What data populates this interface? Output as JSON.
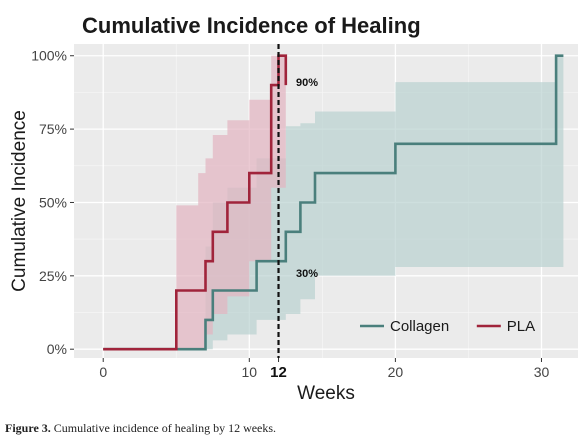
{
  "chart_data": {
    "type": "line",
    "step": true,
    "title": "Cumulative Incidence of Healing",
    "xlabel": "Weeks",
    "ylabel": "Cumulative Incidence",
    "xlim": [
      -2,
      32.5
    ],
    "ylim": [
      -0.03,
      1.04
    ],
    "x_ticks": [
      {
        "value": 0,
        "label": "0",
        "bold": false
      },
      {
        "value": 10,
        "label": "10",
        "bold": false
      },
      {
        "value": 12,
        "label": "12",
        "bold": true
      },
      {
        "value": 20,
        "label": "20",
        "bold": false
      },
      {
        "value": 30,
        "label": "30",
        "bold": false
      }
    ],
    "y_ticks": [
      {
        "value": 0,
        "label": "0%"
      },
      {
        "value": 0.25,
        "label": "25%"
      },
      {
        "value": 0.5,
        "label": "50%"
      },
      {
        "value": 0.75,
        "label": "75%"
      },
      {
        "value": 1.0,
        "label": "100%"
      }
    ],
    "grid": true,
    "background": "#ebebeb",
    "legend_position": "bottom-right",
    "series": [
      {
        "name": "Collagen",
        "color": "#4a7f7c",
        "band_color": "#b9d2d0",
        "x": [
          0,
          7,
          7.5,
          8.5,
          10.5,
          12.5,
          13.5,
          14.5,
          20,
          31,
          31.5
        ],
        "y": [
          0,
          0.1,
          0.2,
          0.2,
          0.3,
          0.4,
          0.5,
          0.6,
          0.7,
          1.0,
          1.0
        ],
        "ci_lower": [
          0,
          0.0,
          0.03,
          0.05,
          0.1,
          0.12,
          0.17,
          0.25,
          0.28,
          0.28
        ],
        "ci_upper": [
          0,
          0.35,
          0.5,
          0.55,
          0.65,
          0.76,
          0.77,
          0.81,
          0.91,
          1.0
        ],
        "final_x": 31.5
      },
      {
        "name": "PLA",
        "color": "#a0243b",
        "band_color": "#e3b3c1",
        "x": [
          0,
          5,
          6.5,
          7,
          7.5,
          8.5,
          10,
          11.5,
          12,
          12.5
        ],
        "y": [
          0,
          0.2,
          0.2,
          0.3,
          0.4,
          0.5,
          0.6,
          0.9,
          1.0,
          0.9
        ],
        "ci_lower": [
          0,
          0.0,
          0.0,
          0.05,
          0.12,
          0.18,
          0.3,
          0.55,
          0.55
        ],
        "ci_upper": [
          0,
          0.49,
          0.6,
          0.65,
          0.73,
          0.78,
          0.85,
          1.0,
          1.0
        ],
        "final_x": 12.5
      }
    ],
    "vertical_line": {
      "x": 12,
      "style": "dashed",
      "color": "#111111"
    },
    "annotations": [
      {
        "text": "90%",
        "x": 13.2,
        "y": 0.91
      },
      {
        "text": "30%",
        "x": 13.2,
        "y": 0.26
      }
    ]
  },
  "caption": {
    "label": "Figure 3.",
    "text": "Cumulative incidence of healing by 12 weeks."
  }
}
